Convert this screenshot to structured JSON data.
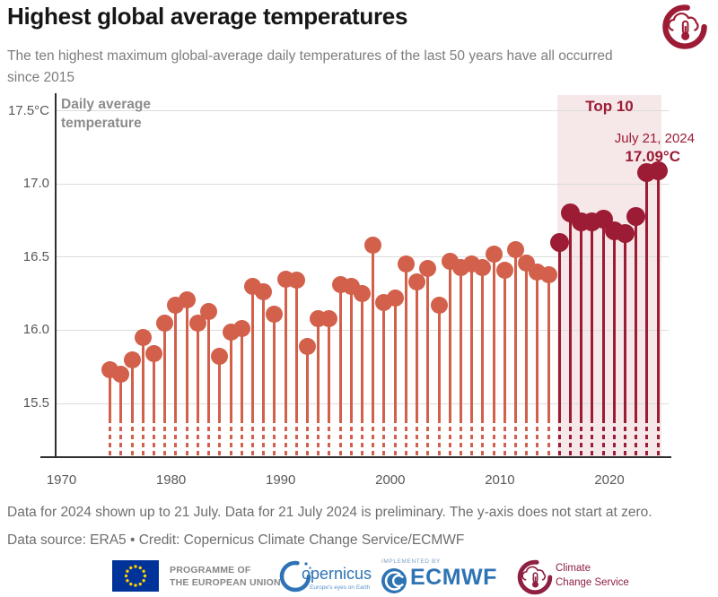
{
  "header": {
    "title": "Highest global average temperatures",
    "subtitle": "The ten highest maximum global-average daily temperatures of the last 50 years have all occurred since 2015"
  },
  "chart_data": {
    "type": "lollipop",
    "title": "Highest global average temperatures",
    "ylabel": "Daily average temperature",
    "y_unit": "°C",
    "broken_axis_note": "y-axis does not start at zero (dashed stem bases)",
    "ylim_visible": [
      15.5,
      17.5
    ],
    "y_ticks": [
      {
        "value": 17.5,
        "label": "17.5°C"
      },
      {
        "value": 17.0,
        "label": "17.0"
      },
      {
        "value": 16.5,
        "label": "16.5"
      },
      {
        "value": 16.0,
        "label": "16.0"
      },
      {
        "value": 15.5,
        "label": "15.5"
      }
    ],
    "x_ticks": [
      1970,
      1980,
      1990,
      2000,
      2010,
      2020
    ],
    "top10_band_years": [
      2015,
      2024
    ],
    "annotations": {
      "top10_label": "Top 10",
      "date_label": "July 21, 2024",
      "value_label": "17.09°C"
    },
    "colors": {
      "normal": "#d2604b",
      "top10": "#9c1b35",
      "band": "#f6e8e8",
      "grid": "#dcdcdc",
      "axis": "#2e2e2e"
    },
    "points": [
      {
        "year": 1974,
        "value": 15.73,
        "top10": false
      },
      {
        "year": 1975,
        "value": 15.7,
        "top10": false
      },
      {
        "year": 1976,
        "value": 15.8,
        "top10": false
      },
      {
        "year": 1977,
        "value": 15.95,
        "top10": false
      },
      {
        "year": 1978,
        "value": 15.84,
        "top10": false
      },
      {
        "year": 1979,
        "value": 16.05,
        "top10": false
      },
      {
        "year": 1980,
        "value": 16.17,
        "top10": false
      },
      {
        "year": 1981,
        "value": 16.21,
        "top10": false
      },
      {
        "year": 1982,
        "value": 16.05,
        "top10": false
      },
      {
        "year": 1983,
        "value": 16.13,
        "top10": false
      },
      {
        "year": 1984,
        "value": 15.82,
        "top10": false
      },
      {
        "year": 1985,
        "value": 15.99,
        "top10": false
      },
      {
        "year": 1986,
        "value": 16.01,
        "top10": false
      },
      {
        "year": 1987,
        "value": 16.3,
        "top10": false
      },
      {
        "year": 1988,
        "value": 16.26,
        "top10": false
      },
      {
        "year": 1989,
        "value": 16.11,
        "top10": false
      },
      {
        "year": 1990,
        "value": 16.35,
        "top10": false
      },
      {
        "year": 1991,
        "value": 16.34,
        "top10": false
      },
      {
        "year": 1992,
        "value": 15.89,
        "top10": false
      },
      {
        "year": 1993,
        "value": 16.08,
        "top10": false
      },
      {
        "year": 1994,
        "value": 16.08,
        "top10": false
      },
      {
        "year": 1995,
        "value": 16.31,
        "top10": false
      },
      {
        "year": 1996,
        "value": 16.3,
        "top10": false
      },
      {
        "year": 1997,
        "value": 16.25,
        "top10": false
      },
      {
        "year": 1998,
        "value": 16.58,
        "top10": false
      },
      {
        "year": 1999,
        "value": 16.19,
        "top10": false
      },
      {
        "year": 2000,
        "value": 16.22,
        "top10": false
      },
      {
        "year": 2001,
        "value": 16.45,
        "top10": false
      },
      {
        "year": 2002,
        "value": 16.33,
        "top10": false
      },
      {
        "year": 2003,
        "value": 16.42,
        "top10": false
      },
      {
        "year": 2004,
        "value": 16.17,
        "top10": false
      },
      {
        "year": 2005,
        "value": 16.47,
        "top10": false
      },
      {
        "year": 2006,
        "value": 16.43,
        "top10": false
      },
      {
        "year": 2007,
        "value": 16.45,
        "top10": false
      },
      {
        "year": 2008,
        "value": 16.43,
        "top10": false
      },
      {
        "year": 2009,
        "value": 16.52,
        "top10": false
      },
      {
        "year": 2010,
        "value": 16.41,
        "top10": false
      },
      {
        "year": 2011,
        "value": 16.55,
        "top10": false
      },
      {
        "year": 2012,
        "value": 16.46,
        "top10": false
      },
      {
        "year": 2013,
        "value": 16.4,
        "top10": false
      },
      {
        "year": 2014,
        "value": 16.38,
        "top10": false
      },
      {
        "year": 2015,
        "value": 16.6,
        "top10": true
      },
      {
        "year": 2016,
        "value": 16.8,
        "top10": true
      },
      {
        "year": 2017,
        "value": 16.74,
        "top10": true
      },
      {
        "year": 2018,
        "value": 16.74,
        "top10": true
      },
      {
        "year": 2019,
        "value": 16.76,
        "top10": true
      },
      {
        "year": 2020,
        "value": 16.68,
        "top10": true
      },
      {
        "year": 2021,
        "value": 16.66,
        "top10": true
      },
      {
        "year": 2022,
        "value": 16.78,
        "top10": true
      },
      {
        "year": 2023,
        "value": 17.08,
        "top10": true
      },
      {
        "year": 2024,
        "value": 17.09,
        "top10": true
      }
    ]
  },
  "footer": {
    "note": "Data for 2024 shown up to 21 July. Data for 21 July 2024 is preliminary. The y-axis does not start at zero.",
    "source": "Data source: ERA5 • Credit: Copernicus Climate Change Service/ECMWF"
  },
  "logos": {
    "eu": {
      "line1": "PROGRAMME OF",
      "line2": "THE EUROPEAN UNION"
    },
    "copernicus": {
      "wordmark": "opernicus",
      "tagline": "Europe's eyes on Earth"
    },
    "ecmwf": {
      "pre": "IMPLEMENTED BY",
      "wordmark": "ECMWF"
    },
    "c3s": {
      "line1": "Climate",
      "line2": "Change Service"
    }
  }
}
